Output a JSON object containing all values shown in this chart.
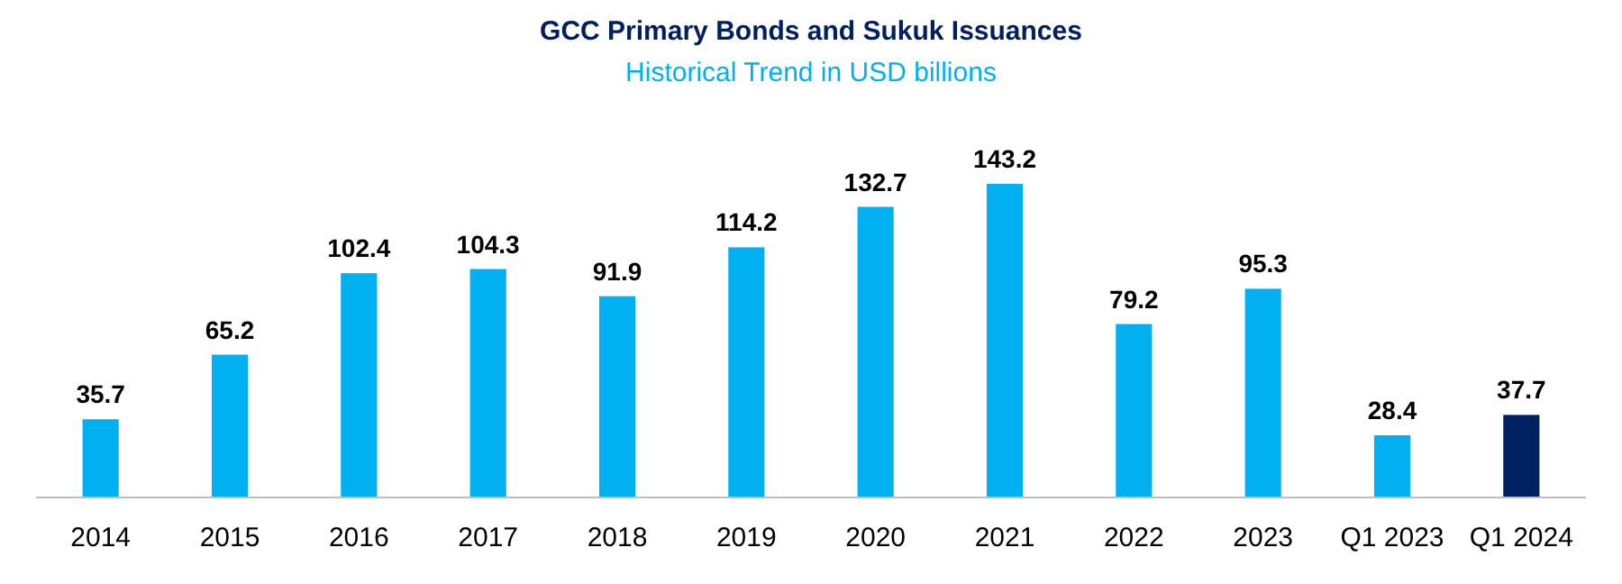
{
  "chart_data": {
    "type": "bar",
    "title": "GCC Primary Bonds and Sukuk Issuances",
    "subtitle": "Historical Trend in USD billions",
    "categories": [
      "2014",
      "2015",
      "2016",
      "2017",
      "2018",
      "2019",
      "2020",
      "2021",
      "2022",
      "2023",
      "Q1 2023",
      "Q1 2024"
    ],
    "values": [
      35.7,
      65.2,
      102.4,
      104.3,
      91.9,
      114.2,
      132.7,
      143.2,
      79.2,
      95.3,
      28.4,
      37.7
    ],
    "colors": [
      "#00b0f0",
      "#00b0f0",
      "#00b0f0",
      "#00b0f0",
      "#00b0f0",
      "#00b0f0",
      "#00b0f0",
      "#00b0f0",
      "#00b0f0",
      "#00b0f0",
      "#00b0f0",
      "#002060"
    ],
    "data_labels": true,
    "grid": false
  }
}
